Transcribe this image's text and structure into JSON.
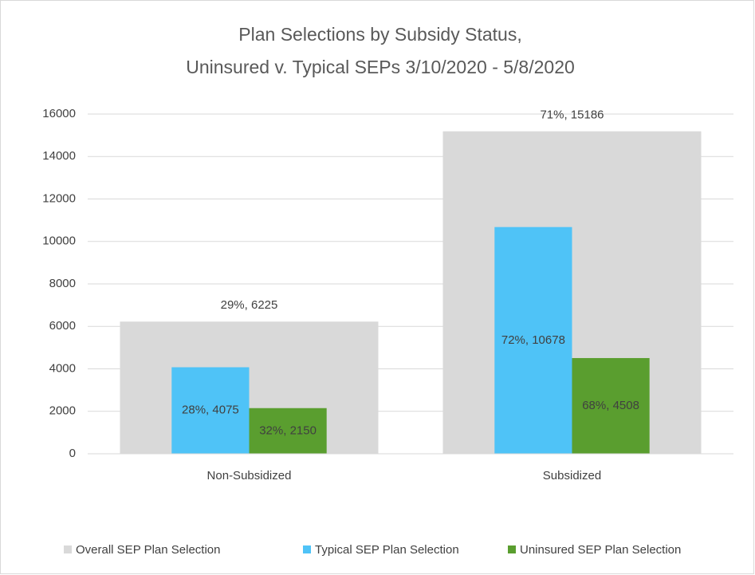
{
  "chart_data": {
    "type": "bar",
    "title": [
      "Plan Selections by Subsidy Status,",
      "Uninsured v. Typical SEPs 3/10/2020 - 5/8/2020"
    ],
    "categories": [
      "Non-Subsidized",
      "Subsidized"
    ],
    "series": [
      {
        "name": "Overall SEP Plan Selection",
        "color": "#d9d9d9",
        "values": [
          6225,
          15186
        ],
        "value_labels": [
          "29%, 6225",
          "71%, 15186"
        ]
      },
      {
        "name": "Typical SEP Plan Selection",
        "color": "#4fc3f7",
        "values": [
          4075,
          10678
        ],
        "value_labels": [
          "28%, 4075",
          "72%, 10678"
        ]
      },
      {
        "name": "Uninsured SEP Plan Selection",
        "color": "#5a9e2f",
        "values": [
          2150,
          4508
        ],
        "value_labels": [
          "32%, 2150",
          "68%, 4508"
        ]
      }
    ],
    "ylim": [
      0,
      16000
    ],
    "yticks": [
      0,
      2000,
      4000,
      6000,
      8000,
      10000,
      12000,
      14000,
      16000
    ],
    "grid": true,
    "legend": "bottom"
  }
}
